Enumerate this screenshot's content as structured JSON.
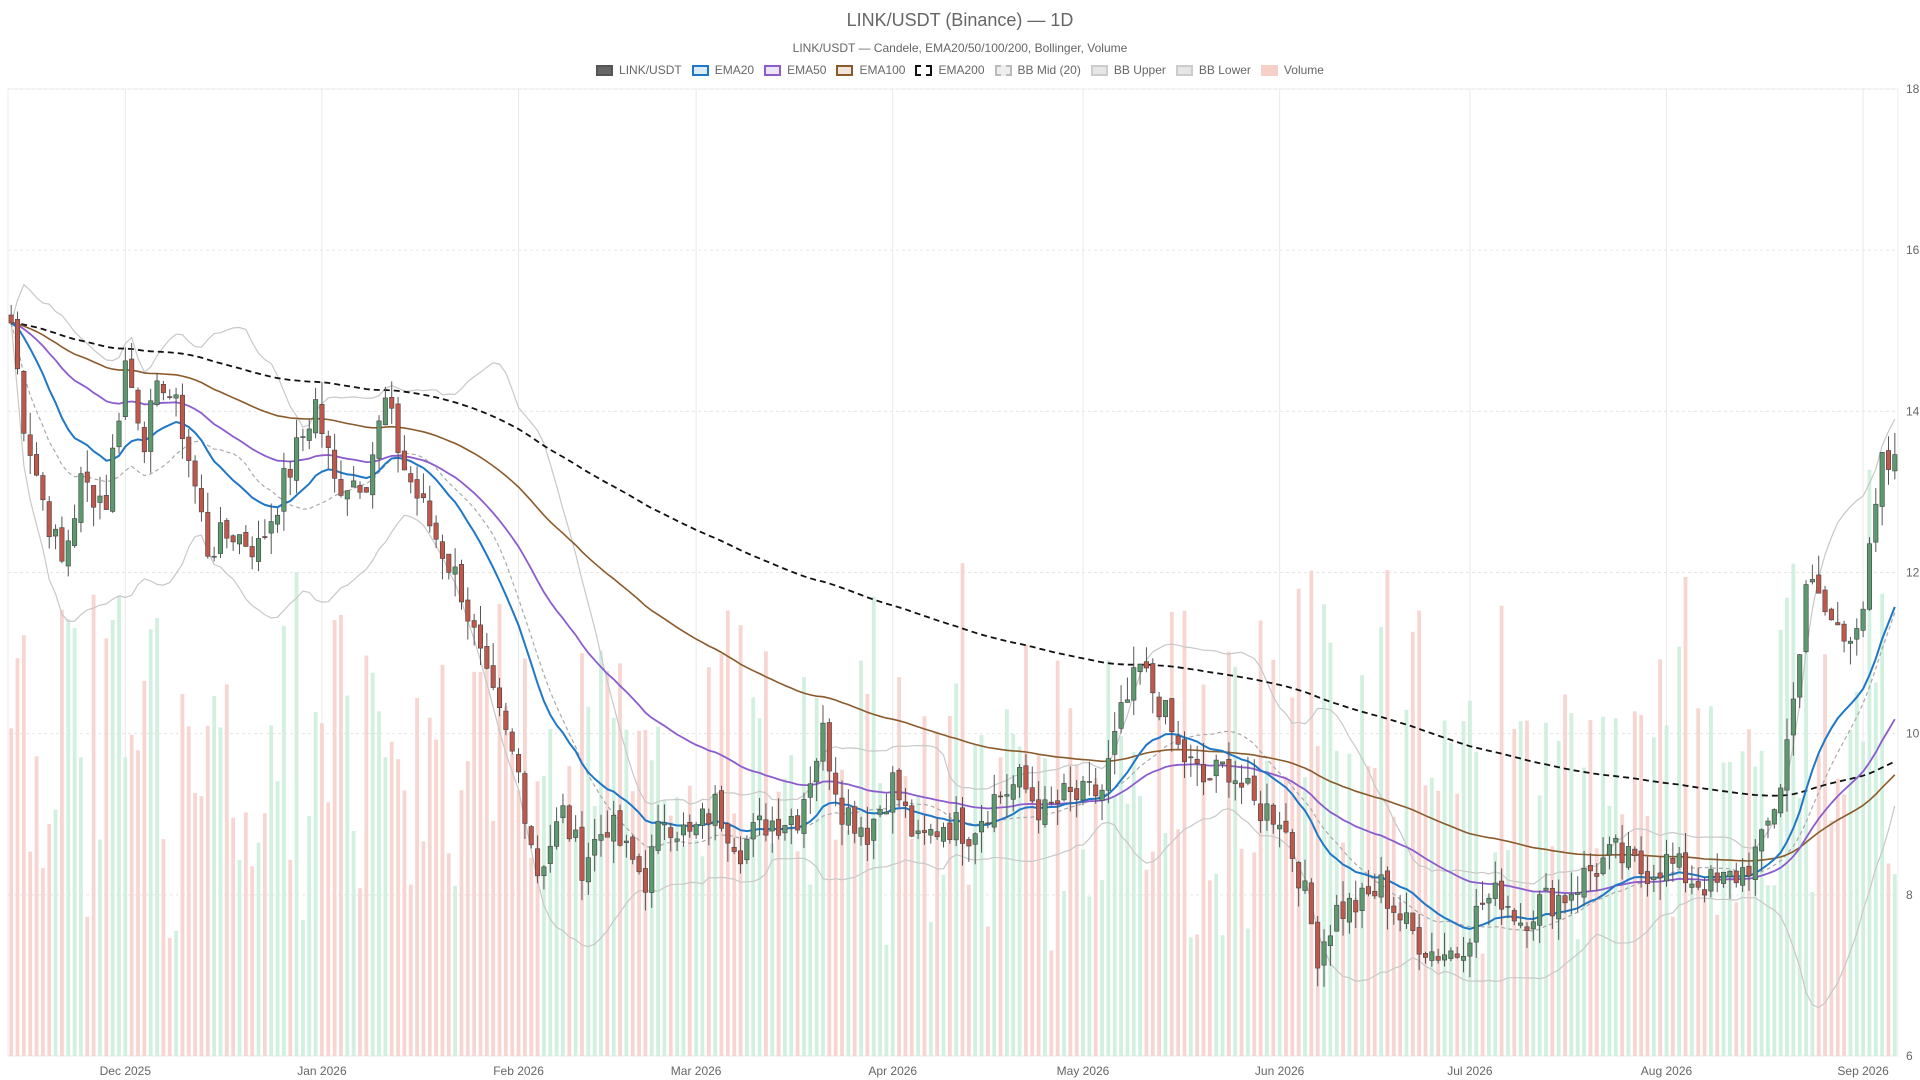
{
  "chart_data": {
    "type": "candlestick",
    "title": "LINK/USDT (Binance) — 1D",
    "subtitle": "LINK/USDT — Candele, EMA20/50/100/200, Bollinger, Volume",
    "legend_placement": "top-center",
    "grid": true,
    "y_axis": {
      "position": "right",
      "ylim": [
        6,
        18
      ],
      "ticks": [
        "6",
        "8",
        "10",
        "12",
        "14",
        "16",
        "18"
      ]
    },
    "x_axis": {
      "range": [
        "2025-11-13",
        "2026-09-06"
      ],
      "ticks": [
        {
          "date": "2025-12-01",
          "label": "Dec 2025"
        },
        {
          "date": "2026-01-01",
          "label": "Jan 2026"
        },
        {
          "date": "2026-02-01",
          "label": "Feb 2026"
        },
        {
          "date": "2026-03-01",
          "label": "Mar 2026"
        },
        {
          "date": "2026-04-01",
          "label": "Apr 2026"
        },
        {
          "date": "2026-05-01",
          "label": "May 2026"
        },
        {
          "date": "2026-06-01",
          "label": "Jun 2026"
        },
        {
          "date": "2026-07-01",
          "label": "Jul 2026"
        },
        {
          "date": "2026-08-01",
          "label": "Aug 2026"
        },
        {
          "date": "2026-09-01",
          "label": "Sep 2026"
        }
      ]
    },
    "legend": [
      {
        "name": "LINK/USDT",
        "color": "#666666",
        "border": "#555555",
        "style": "solid"
      },
      {
        "name": "EMA20",
        "color": "#dbeaf7",
        "border": "#1f77c8",
        "style": "solid"
      },
      {
        "name": "EMA50",
        "color": "#ece4f7",
        "border": "#8c5ccf",
        "style": "solid"
      },
      {
        "name": "EMA100",
        "color": "#f1e6dc",
        "border": "#8b5a2b",
        "style": "solid"
      },
      {
        "name": "EMA200",
        "color": "#ffffff",
        "border": "#111111",
        "style": "dashed"
      },
      {
        "name": "BB Mid (20)",
        "color": "#eeeeee",
        "border": "#bbbbbb",
        "style": "dashed"
      },
      {
        "name": "BB Upper",
        "color": "#e6e6e6",
        "border": "#cccccc",
        "style": "solid"
      },
      {
        "name": "BB Lower",
        "color": "#e6e6e6",
        "border": "#cccccc",
        "style": "solid"
      },
      {
        "name": "Volume",
        "color": "#f6cfc8",
        "border": "#f6cfc8",
        "style": "solid"
      }
    ],
    "colors": {
      "up": "#5a9a6e",
      "down": "#c0574b",
      "vol_up": "#cdeedd",
      "vol_down": "#f6d2cc"
    },
    "close_anchors": [
      [
        "2025-11-13",
        15.1
      ],
      [
        "2025-11-15",
        13.9
      ],
      [
        "2025-11-18",
        12.9
      ],
      [
        "2025-11-21",
        12.1
      ],
      [
        "2025-11-24",
        13.1
      ],
      [
        "2025-11-28",
        12.9
      ],
      [
        "2025-12-01",
        14.6
      ],
      [
        "2025-12-04",
        13.7
      ],
      [
        "2025-12-07",
        14.4
      ],
      [
        "2025-12-10",
        13.8
      ],
      [
        "2025-12-14",
        12.3
      ],
      [
        "2025-12-18",
        12.5
      ],
      [
        "2025-12-22",
        12.3
      ],
      [
        "2025-12-27",
        13.3
      ],
      [
        "2025-12-31",
        14.1
      ],
      [
        "2026-01-03",
        13.1
      ],
      [
        "2026-01-08",
        13.2
      ],
      [
        "2026-01-11",
        14.1
      ],
      [
        "2026-01-14",
        13.3
      ],
      [
        "2026-01-18",
        12.6
      ],
      [
        "2026-01-23",
        11.8
      ],
      [
        "2026-01-27",
        10.6
      ],
      [
        "2026-02-01",
        9.5
      ],
      [
        "2026-02-04",
        8.3
      ],
      [
        "2026-02-08",
        9.0
      ],
      [
        "2026-02-11",
        8.4
      ],
      [
        "2026-02-15",
        8.9
      ],
      [
        "2026-02-18",
        8.5
      ],
      [
        "2026-02-21",
        8.2
      ],
      [
        "2026-02-24",
        9.0
      ],
      [
        "2026-02-28",
        8.7
      ],
      [
        "2026-03-04",
        9.1
      ],
      [
        "2026-03-08",
        8.6
      ],
      [
        "2026-03-12",
        8.9
      ],
      [
        "2026-03-17",
        9.0
      ],
      [
        "2026-03-21",
        10.0
      ],
      [
        "2026-03-24",
        9.1
      ],
      [
        "2026-03-28",
        8.8
      ],
      [
        "2026-04-01",
        9.4
      ],
      [
        "2026-04-05",
        8.6
      ],
      [
        "2026-04-09",
        8.9
      ],
      [
        "2026-04-13",
        8.8
      ],
      [
        "2026-04-17",
        9.2
      ],
      [
        "2026-04-21",
        9.4
      ],
      [
        "2026-04-25",
        9.0
      ],
      [
        "2026-04-28",
        9.2
      ],
      [
        "2026-05-01",
        9.2
      ],
      [
        "2026-05-04",
        9.3
      ],
      [
        "2026-05-07",
        10.2
      ],
      [
        "2026-05-10",
        10.8
      ],
      [
        "2026-05-13",
        10.4
      ],
      [
        "2026-05-16",
        9.8
      ],
      [
        "2026-05-20",
        9.4
      ],
      [
        "2026-05-24",
        9.6
      ],
      [
        "2026-05-28",
        9.1
      ],
      [
        "2026-06-01",
        9.0
      ],
      [
        "2026-06-04",
        8.3
      ],
      [
        "2026-06-07",
        7.3
      ],
      [
        "2026-06-10",
        7.8
      ],
      [
        "2026-06-14",
        7.9
      ],
      [
        "2026-06-17",
        8.1
      ],
      [
        "2026-06-21",
        7.6
      ],
      [
        "2026-06-25",
        7.3
      ],
      [
        "2026-06-29",
        7.3
      ],
      [
        "2026-07-03",
        7.9
      ],
      [
        "2026-07-06",
        8.0
      ],
      [
        "2026-07-09",
        7.7
      ],
      [
        "2026-07-12",
        7.9
      ],
      [
        "2026-07-16",
        8.0
      ],
      [
        "2026-07-20",
        8.3
      ],
      [
        "2026-07-24",
        8.5
      ],
      [
        "2026-07-28",
        8.3
      ],
      [
        "2026-08-01",
        8.4
      ],
      [
        "2026-08-05",
        8.2
      ],
      [
        "2026-08-09",
        8.1
      ],
      [
        "2026-08-13",
        8.3
      ],
      [
        "2026-08-16",
        8.6
      ],
      [
        "2026-08-19",
        9.4
      ],
      [
        "2026-08-21",
        10.4
      ],
      [
        "2026-08-23",
        11.9
      ],
      [
        "2026-08-26",
        11.5
      ],
      [
        "2026-08-29",
        11.2
      ],
      [
        "2026-09-01",
        11.6
      ],
      [
        "2026-09-04",
        13.3
      ],
      [
        "2026-09-06",
        13.3
      ]
    ],
    "volume_range": [
      0,
      20
    ]
  }
}
